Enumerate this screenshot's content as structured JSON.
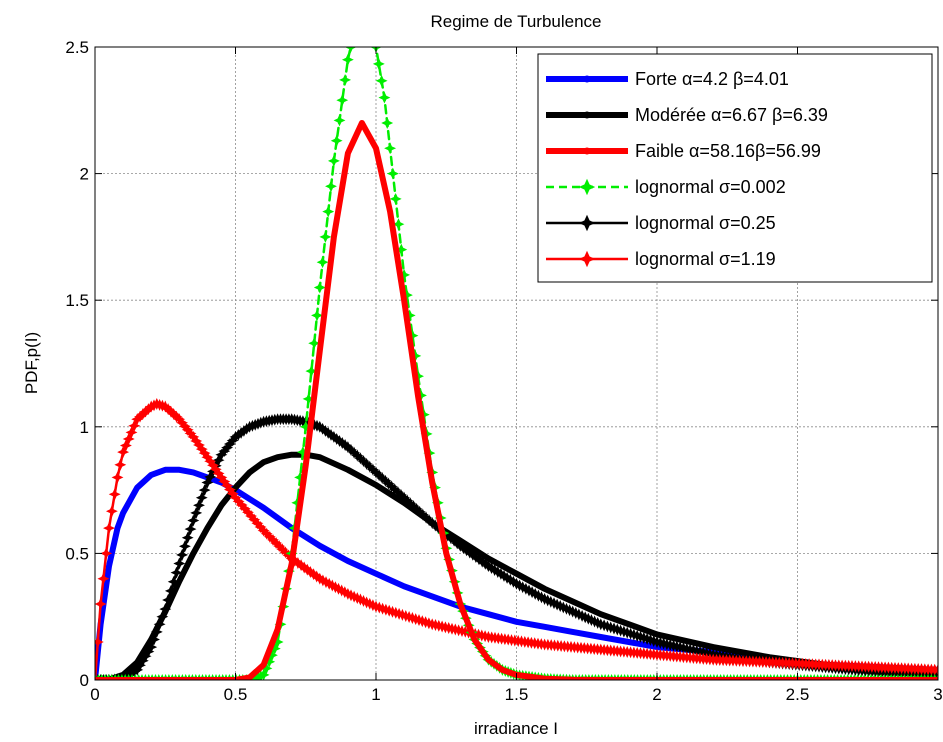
{
  "chart_data": {
    "type": "line",
    "title": "Regime de Turbulence",
    "xlabel": "irradiance I",
    "ylabel": "PDF,p(I)",
    "xlim": [
      0,
      3
    ],
    "ylim": [
      0,
      2.5
    ],
    "xticks": [
      0,
      0.5,
      1,
      1.5,
      2,
      2.5,
      3
    ],
    "xtick_labels": [
      "0",
      "0.5",
      "1",
      "1.5",
      "2",
      "2.5",
      "3"
    ],
    "yticks": [
      0,
      0.5,
      1,
      1.5,
      2,
      2.5
    ],
    "ytick_labels": [
      "0",
      "0.5",
      "1",
      "1.5",
      "2",
      "2.5"
    ],
    "grid": true,
    "legend_position": "top-right",
    "series": [
      {
        "name": "Forte α=4.2 β=4.01",
        "color": "#0000ff",
        "style": "solid",
        "marker": "dot",
        "x": [
          0,
          0.02,
          0.05,
          0.08,
          0.1,
          0.15,
          0.2,
          0.25,
          0.3,
          0.35,
          0.4,
          0.45,
          0.5,
          0.6,
          0.7,
          0.8,
          0.9,
          1.0,
          1.1,
          1.2,
          1.3,
          1.4,
          1.5,
          1.6,
          1.7,
          1.8,
          1.9,
          2.0,
          2.2,
          2.4,
          2.6,
          2.8,
          3.0
        ],
        "y": [
          0,
          0.22,
          0.45,
          0.6,
          0.66,
          0.76,
          0.81,
          0.83,
          0.83,
          0.82,
          0.8,
          0.78,
          0.75,
          0.68,
          0.6,
          0.53,
          0.47,
          0.42,
          0.37,
          0.33,
          0.29,
          0.26,
          0.23,
          0.21,
          0.19,
          0.17,
          0.15,
          0.13,
          0.11,
          0.08,
          0.06,
          0.05,
          0.04
        ]
      },
      {
        "name": "Modérée α=6.67 β=6.39",
        "color": "#000000",
        "style": "solid",
        "marker": "dot",
        "x": [
          0,
          0.05,
          0.1,
          0.15,
          0.2,
          0.25,
          0.3,
          0.35,
          0.4,
          0.45,
          0.5,
          0.55,
          0.6,
          0.65,
          0.7,
          0.75,
          0.8,
          0.9,
          1.0,
          1.1,
          1.2,
          1.3,
          1.4,
          1.5,
          1.6,
          1.7,
          1.8,
          2.0,
          2.2,
          2.4,
          2.6,
          2.8,
          3.0
        ],
        "y": [
          0,
          0.002,
          0.02,
          0.07,
          0.16,
          0.27,
          0.39,
          0.5,
          0.6,
          0.69,
          0.76,
          0.82,
          0.86,
          0.88,
          0.89,
          0.89,
          0.88,
          0.83,
          0.77,
          0.7,
          0.62,
          0.55,
          0.48,
          0.42,
          0.36,
          0.31,
          0.26,
          0.18,
          0.13,
          0.09,
          0.06,
          0.04,
          0.03
        ]
      },
      {
        "name": "Faible α=58.16β=56.99",
        "color": "#ff0000",
        "style": "solid",
        "marker": "dot",
        "x": [
          0,
          0.5,
          0.55,
          0.6,
          0.65,
          0.7,
          0.75,
          0.8,
          0.85,
          0.9,
          0.95,
          1.0,
          1.05,
          1.1,
          1.15,
          1.2,
          1.25,
          1.3,
          1.35,
          1.4,
          1.45,
          1.5,
          1.6,
          1.7,
          1.8,
          2.0,
          3.0
        ],
        "y": [
          0,
          0,
          0.01,
          0.06,
          0.2,
          0.46,
          0.85,
          1.3,
          1.75,
          2.08,
          2.2,
          2.1,
          1.85,
          1.5,
          1.12,
          0.78,
          0.5,
          0.3,
          0.16,
          0.08,
          0.04,
          0.02,
          0.005,
          0.001,
          0,
          0,
          0
        ]
      },
      {
        "name": "lognormal σ=0.002",
        "color": "#00ee00",
        "style": "dashed",
        "marker": "star",
        "x": [
          0,
          0.55,
          0.6,
          0.65,
          0.7,
          0.75,
          0.8,
          0.85,
          0.9,
          0.92,
          0.95,
          0.98,
          1.0,
          1.03,
          1.06,
          1.1,
          1.15,
          1.2,
          1.25,
          1.3,
          1.35,
          1.4,
          1.45,
          1.5,
          1.6,
          1.7,
          2.0,
          3.0
        ],
        "y": [
          0,
          0,
          0.02,
          0.15,
          0.5,
          1.0,
          1.55,
          2.05,
          2.45,
          2.55,
          2.6,
          2.58,
          2.5,
          2.3,
          2.0,
          1.6,
          1.2,
          0.82,
          0.52,
          0.3,
          0.16,
          0.08,
          0.04,
          0.02,
          0.005,
          0,
          0,
          0
        ]
      },
      {
        "name": "lognormal σ=0.25",
        "color": "#000000",
        "style": "solid",
        "marker": "star",
        "x": [
          0,
          0.05,
          0.1,
          0.15,
          0.2,
          0.25,
          0.3,
          0.35,
          0.4,
          0.45,
          0.5,
          0.55,
          0.6,
          0.65,
          0.7,
          0.75,
          0.8,
          0.85,
          0.9,
          1.0,
          1.1,
          1.2,
          1.3,
          1.4,
          1.5,
          1.6,
          1.7,
          1.8,
          2.0,
          2.2,
          2.4,
          2.6,
          2.8,
          3.0
        ],
        "y": [
          0,
          0,
          0.005,
          0.04,
          0.13,
          0.28,
          0.46,
          0.63,
          0.78,
          0.89,
          0.96,
          1.0,
          1.02,
          1.03,
          1.03,
          1.02,
          1.0,
          0.96,
          0.92,
          0.82,
          0.72,
          0.62,
          0.53,
          0.45,
          0.38,
          0.32,
          0.27,
          0.22,
          0.15,
          0.1,
          0.07,
          0.05,
          0.03,
          0.02
        ]
      },
      {
        "name": "lognormal σ=1.19",
        "color": "#ff0000",
        "style": "solid",
        "marker": "star",
        "x": [
          0,
          0.02,
          0.05,
          0.08,
          0.1,
          0.15,
          0.2,
          0.22,
          0.25,
          0.3,
          0.35,
          0.4,
          0.45,
          0.5,
          0.6,
          0.7,
          0.8,
          0.9,
          1.0,
          1.2,
          1.4,
          1.6,
          1.8,
          2.0,
          2.2,
          2.4,
          2.6,
          2.8,
          3.0
        ],
        "y": [
          0,
          0.3,
          0.6,
          0.8,
          0.9,
          1.03,
          1.08,
          1.09,
          1.08,
          1.03,
          0.96,
          0.88,
          0.8,
          0.72,
          0.59,
          0.48,
          0.4,
          0.34,
          0.29,
          0.22,
          0.17,
          0.14,
          0.12,
          0.1,
          0.08,
          0.07,
          0.06,
          0.05,
          0.04
        ]
      }
    ]
  }
}
